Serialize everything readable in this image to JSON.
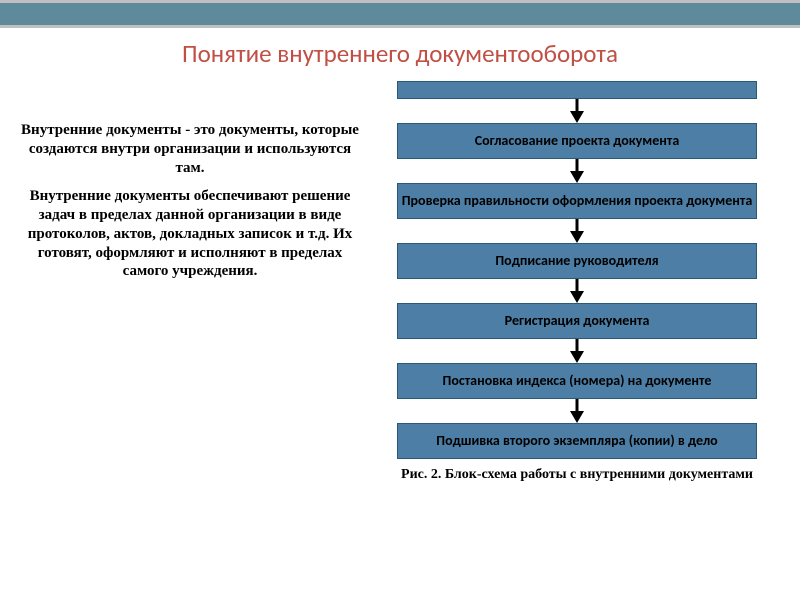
{
  "title": {
    "text": "Понятие внутреннего документооборота",
    "color": "#c05046"
  },
  "left": {
    "p1": "Внутренние документы - это документы, которые создаются внутри организации и используются там.",
    "p2": "Внутренние документы обеспечивают решение задач в пределах данной организации в виде протоколов, актов, докладных записок и т.д. Их готовят, оформляют и исполняют в пределах самого учреждения."
  },
  "flow": {
    "box_bg": "#4d7fa6",
    "box_border": "#2b5a77",
    "arrow_color": "#000000",
    "steps": [
      "",
      "Согласование проекта документа",
      "Проверка правильности оформления проекта документа",
      "Подписание руководителя",
      "Регистрация документа",
      "Постановка индекса (номера) на документе",
      "Подшивка второго экземпляра (копии) в дело"
    ]
  },
  "caption": "Рис. 2. Блок-схема работы с внутренними документами"
}
